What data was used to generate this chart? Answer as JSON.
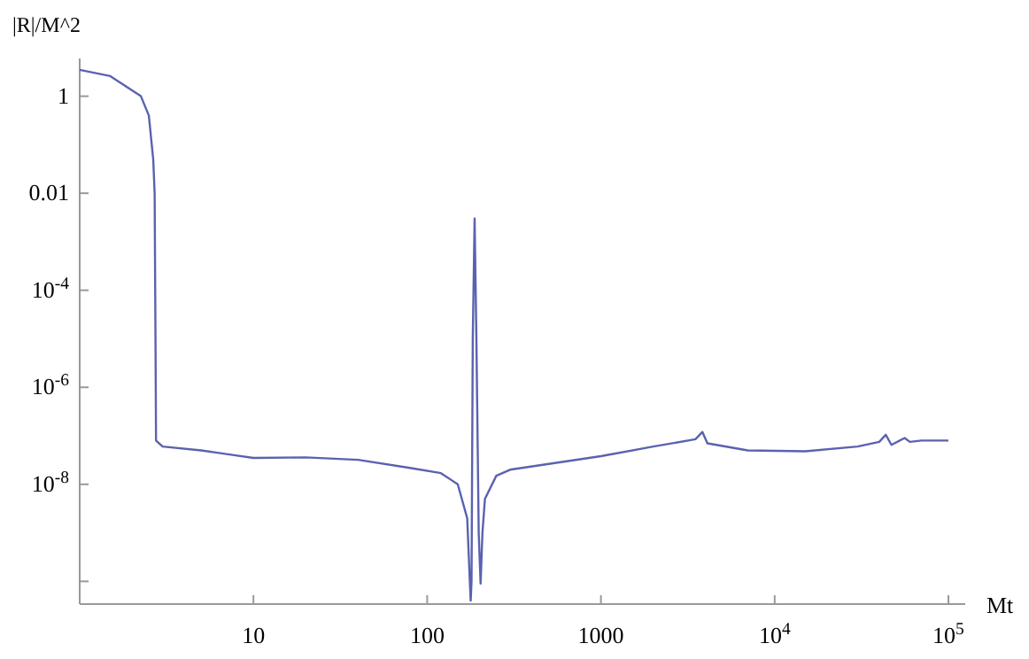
{
  "chart_data": {
    "type": "line",
    "xlabel": "Mt",
    "ylabel": "|R|/M^2",
    "log": "xy",
    "grid": false,
    "marker": "none",
    "line_style": "solid",
    "xlim": [
      1,
      125000
    ],
    "ylim": [
      3.4e-11,
      6
    ],
    "xticks": [
      10,
      100,
      1000,
      {
        "value": 10000,
        "label": "10$^{4}$"
      },
      {
        "value": 100000,
        "label": "10$^{5}$"
      }
    ],
    "yticks": [
      {
        "value": 1e-10,
        "label": null
      },
      {
        "value": 1e-08,
        "label": "10$^{-8}$"
      },
      {
        "value": 1e-06,
        "label": "10$^{-6}$"
      },
      {
        "value": 0.0001,
        "label": "10$^{-4}$"
      },
      0.01,
      1
    ],
    "series": [
      {
        "color": "#5a62b0",
        "x": [
          1,
          1.5,
          2.25,
          2.5,
          2.65,
          2.7,
          2.72,
          2.74,
          2.75,
          3,
          5,
          10,
          20,
          40,
          78,
          120,
          150,
          170,
          176,
          178,
          180,
          183,
          187.5,
          192,
          198,
          203,
          208,
          215,
          250,
          300,
          1000,
          2000,
          3500,
          3840,
          4100,
          7000,
          15000,
          30000,
          40000,
          43600,
          47000,
          56000,
          60000,
          70000,
          100000
        ],
        "values": [
          3.5,
          2.6,
          1,
          0.4,
          0.05,
          0.01,
          0.0001,
          1e-06,
          8e-08,
          6e-08,
          5e-08,
          3.5e-08,
          3.6e-08,
          3.2e-08,
          2.2e-08,
          1.7e-08,
          1e-08,
          2e-09,
          1e-10,
          4e-11,
          1e-10,
          1e-05,
          0.003,
          1e-05,
          1e-09,
          9e-11,
          1e-09,
          5e-09,
          1.5e-08,
          2e-08,
          3.8e-08,
          6e-08,
          8.5e-08,
          1.2e-07,
          7e-08,
          5e-08,
          4.8e-08,
          6e-08,
          7.5e-08,
          1.05e-07,
          6.5e-08,
          9e-08,
          7.5e-08,
          8e-08,
          8e-08
        ]
      }
    ]
  }
}
